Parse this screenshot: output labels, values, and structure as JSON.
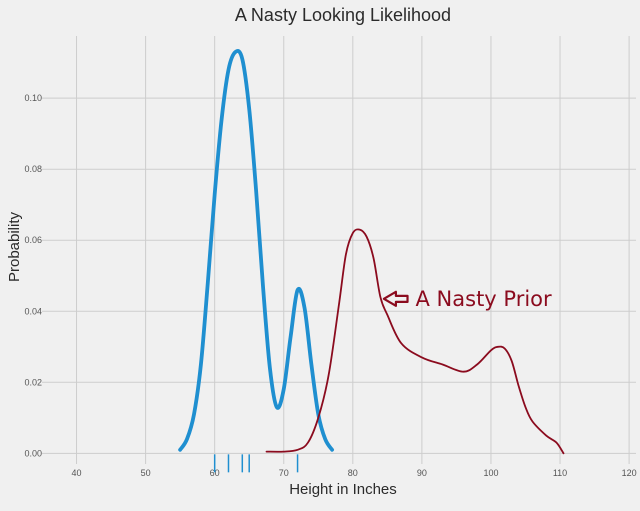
{
  "chart_data": {
    "type": "line",
    "title": "A Nasty Looking Likelihood",
    "xlabel": "Height in Inches",
    "ylabel": "Probability",
    "xlim": [
      35,
      121
    ],
    "ylim": [
      -0.003,
      0.1175
    ],
    "x_ticks": [
      40,
      50,
      60,
      70,
      80,
      90,
      100,
      110,
      120
    ],
    "y_ticks": [
      0.0,
      0.02,
      0.04,
      0.06,
      0.08,
      0.1
    ],
    "grid": true,
    "colors": {
      "likelihood": "#1f8fd0",
      "prior": "#8b0b1e",
      "background": "#f0f0f0",
      "grid": "#cdcdcd"
    },
    "series": [
      {
        "style": "solid",
        "color": "#1f8fd0",
        "x": [
          55,
          56,
          57,
          58,
          59,
          60,
          61,
          62,
          63,
          64,
          65,
          66,
          67,
          68,
          69,
          70,
          71,
          72,
          73,
          74,
          75,
          76,
          77
        ],
        "y": [
          0.001,
          0.004,
          0.011,
          0.025,
          0.048,
          0.073,
          0.094,
          0.108,
          0.113,
          0.111,
          0.097,
          0.074,
          0.047,
          0.024,
          0.013,
          0.018,
          0.033,
          0.046,
          0.041,
          0.025,
          0.011,
          0.004,
          0.001
        ]
      },
      {
        "style": "hand-drawn",
        "color": "#8b0b1e",
        "x": [
          67.5,
          70,
          72,
          73.5,
          75,
          76.5,
          78,
          79,
          80,
          81,
          82,
          83,
          84,
          85,
          87,
          90,
          93,
          96,
          98,
          100,
          101,
          102,
          103,
          104,
          105,
          106,
          108,
          109.5,
          110.5
        ],
        "y": [
          0.0005,
          0.0005,
          0.001,
          0.003,
          0.01,
          0.022,
          0.042,
          0.056,
          0.062,
          0.063,
          0.061,
          0.055,
          0.044,
          0.039,
          0.031,
          0.027,
          0.025,
          0.023,
          0.025,
          0.029,
          0.03,
          0.0295,
          0.026,
          0.019,
          0.013,
          0.009,
          0.005,
          0.003,
          0.0
        ]
      }
    ],
    "rug": [
      60,
      62,
      64,
      65,
      72
    ],
    "annotation": {
      "text": "A Nasty Prior",
      "color": "#8b0b1e",
      "arrow_to": [
        84.5,
        0.0435
      ],
      "text_at": [
        88.5,
        0.0435
      ]
    }
  }
}
